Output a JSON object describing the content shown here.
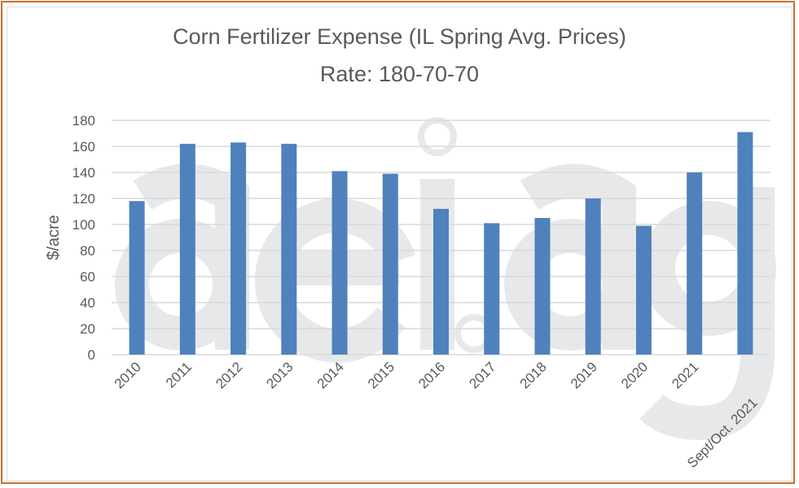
{
  "chart_data": {
    "type": "bar",
    "title": "Corn Fertilizer Expense (IL Spring Avg. Prices)",
    "subtitle": "Rate: 180-70-70",
    "xlabel": "",
    "ylabel": "$/acre",
    "ylim": [
      0,
      180
    ],
    "yticks": [
      0,
      20,
      40,
      60,
      80,
      100,
      120,
      140,
      160,
      180
    ],
    "grid": true,
    "bar_color": "#4f81bd",
    "watermark": "aei.ag",
    "categories": [
      "2010",
      "2011",
      "2012",
      "2013",
      "2014",
      "2015",
      "2016",
      "2017",
      "2018",
      "2019",
      "2020",
      "2021",
      "Sept/Oct. 2021"
    ],
    "values": [
      118,
      162,
      163,
      162,
      141,
      139,
      112,
      101,
      105,
      120,
      99,
      140,
      171
    ]
  }
}
